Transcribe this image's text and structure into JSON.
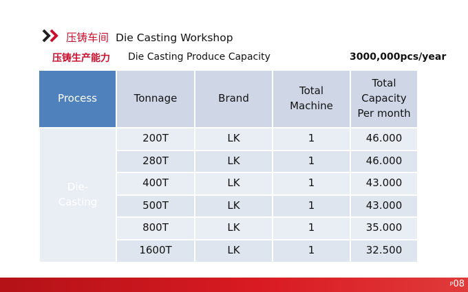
{
  "header": {
    "title_cn": "压铸车间",
    "title_en": "Die Casting Workshop",
    "arrow_colors": [
      "#222222",
      "#c8102e"
    ]
  },
  "subheader": {
    "label_cn": "压铸生产能力",
    "label_en": "Die Casting Produce Capacity",
    "capacity": "3000,000pcs/year"
  },
  "table": {
    "process_header": "Process",
    "process_value": "Die-\nCasting",
    "columns": [
      "Tonnage",
      "Brand",
      "Total\nMachine",
      "Total\nCapacity\nPer month"
    ],
    "rows": [
      {
        "tonnage": "200T",
        "brand": "LK",
        "machines": "1",
        "capacity": "46.000"
      },
      {
        "tonnage": "280T",
        "brand": "LK",
        "machines": "1",
        "capacity": "46.000"
      },
      {
        "tonnage": "400T",
        "brand": "LK",
        "machines": "1",
        "capacity": "43.000"
      },
      {
        "tonnage": "500T",
        "brand": "LK",
        "machines": "1",
        "capacity": "43.000"
      },
      {
        "tonnage": "800T",
        "brand": "LK",
        "machines": "1",
        "capacity": "35.000"
      },
      {
        "tonnage": "1600T",
        "brand": "LK",
        "machines": "1",
        "capacity": "32.500"
      }
    ]
  },
  "footer": {
    "page_prefix": "P",
    "page_number": "08",
    "bar_color": "#d01c1f"
  }
}
